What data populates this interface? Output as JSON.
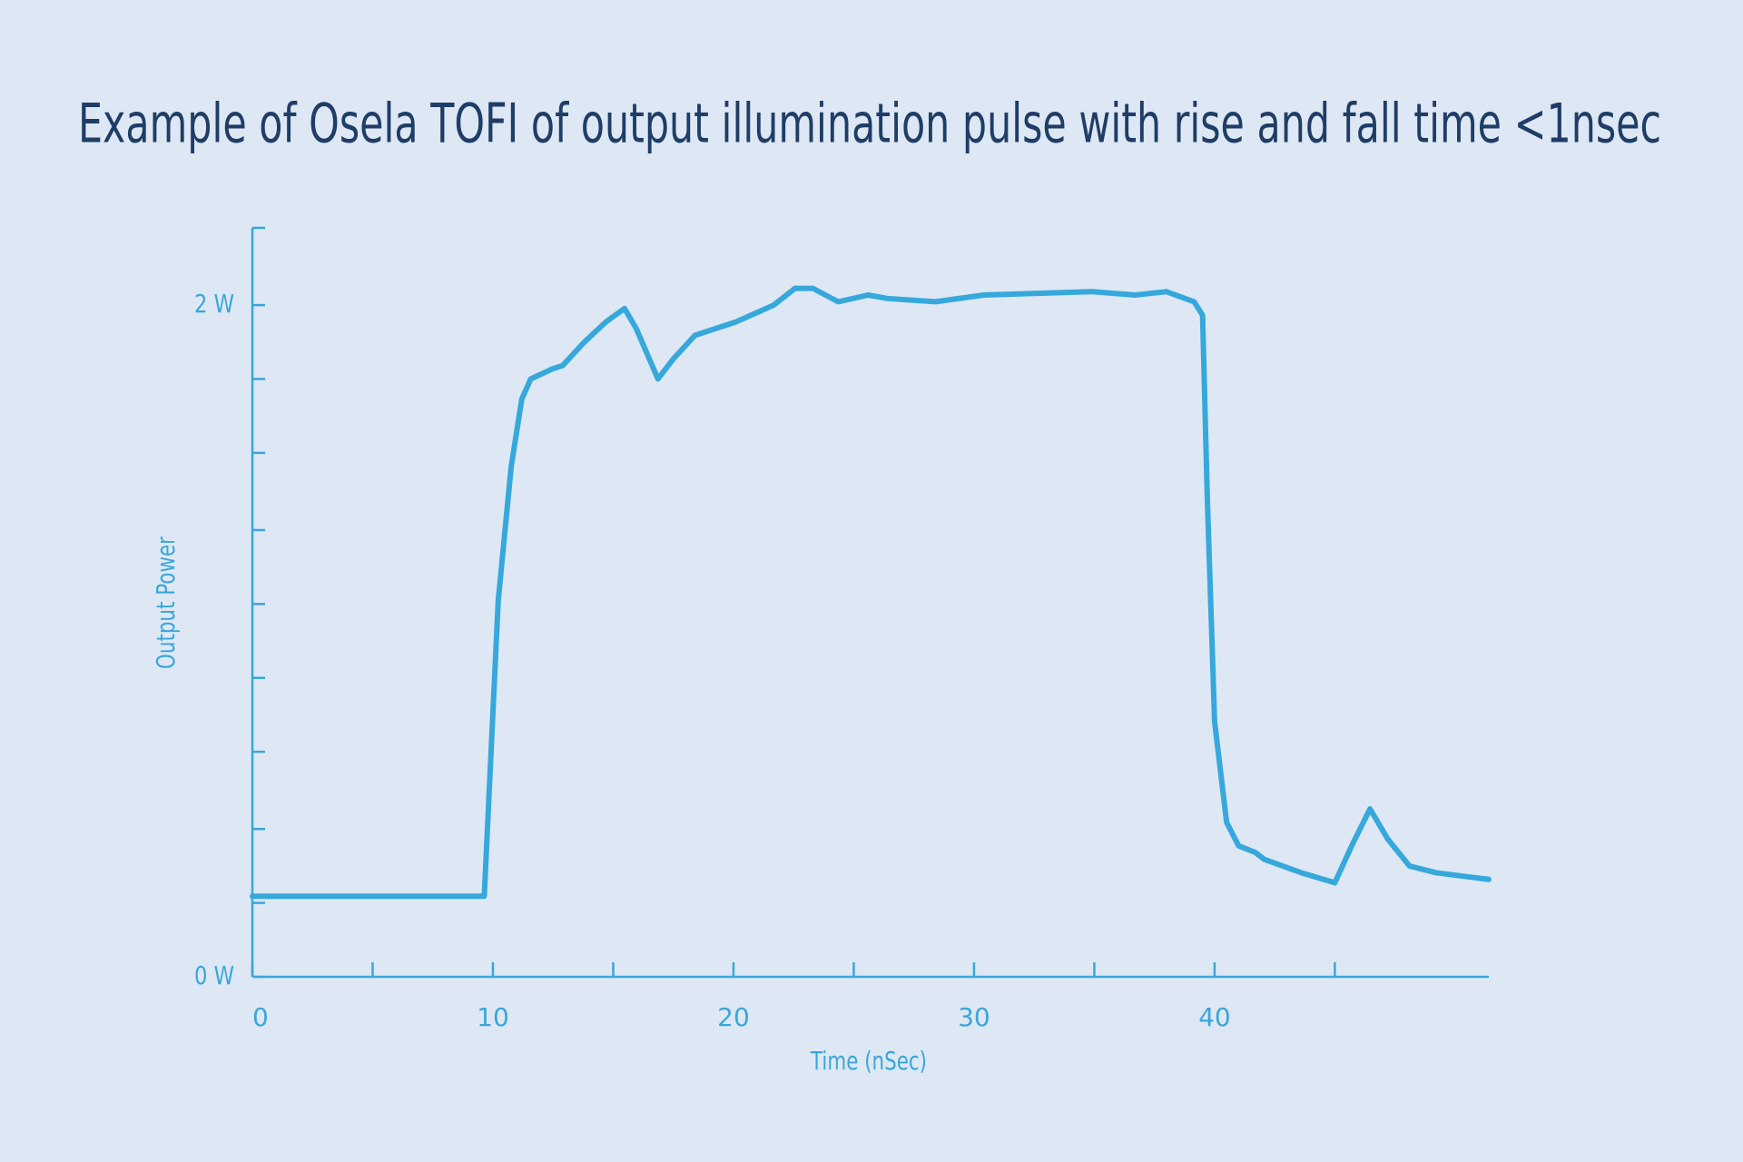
{
  "chart_data": {
    "type": "line",
    "title": "Example of Osela TOFI of output illumination pulse with rise and fall time <1nsec",
    "x_label": "Time (nSec)",
    "y_label": "Output Power",
    "x": [
      0,
      9.64,
      9.87,
      10.22,
      10.76,
      11.2,
      11.57,
      12.47,
      12.9,
      13.8,
      14.7,
      15.47,
      15.96,
      16.86,
      17.5,
      18.4,
      20.1,
      21.67,
      22.56,
      23.3,
      24.35,
      25.6,
      26.37,
      28.4,
      30.4,
      34.9,
      36.7,
      38.0,
      39.15,
      39.5,
      39.7,
      40.0,
      40.5,
      41.0,
      41.7,
      42.06,
      43.6,
      45.0,
      45.7,
      46.46,
      47.2,
      48.1,
      49.2,
      51.4
    ],
    "series": [
      {
        "color": "#36a8dc",
        "values": [
          0.24,
          0.24,
          0.59,
          1.12,
          1.52,
          1.72,
          1.78,
          1.81,
          1.82,
          1.89,
          1.95,
          1.99,
          1.93,
          1.78,
          1.84,
          1.91,
          1.95,
          2.0,
          2.05,
          2.05,
          2.01,
          2.03,
          2.02,
          2.01,
          2.03,
          2.04,
          2.03,
          2.04,
          2.01,
          1.97,
          1.42,
          0.76,
          0.46,
          0.39,
          0.37,
          0.35,
          0.31,
          0.28,
          0.39,
          0.5,
          0.41,
          0.33,
          0.31,
          0.29
        ]
      }
    ],
    "xlim": [
      0,
      51.4
    ],
    "xticks": [
      0,
      10,
      20,
      30,
      40
    ],
    "minor_xticks": [
      5,
      15,
      25,
      35,
      45
    ],
    "ylim": [
      0,
      2.23
    ],
    "yticks": [
      {
        "value": 0,
        "label": "0 W"
      },
      {
        "value": 2,
        "label": "2 W"
      }
    ],
    "minor_yticks": [
      0.22,
      0.44,
      0.67,
      0.89,
      1.11,
      1.33,
      1.56,
      1.78
    ],
    "axis_color": "#3aa6d9"
  }
}
